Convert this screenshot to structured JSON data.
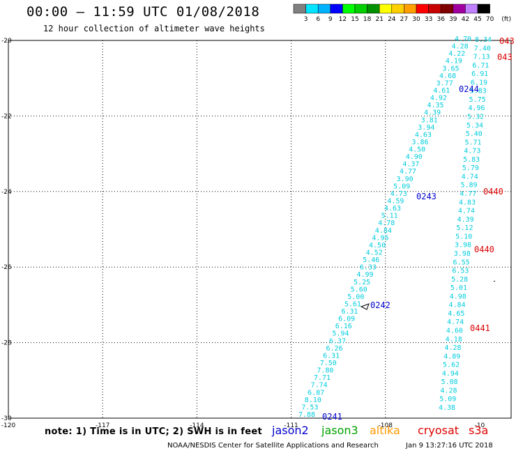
{
  "title": "00:00 – 11:59 UTC 01/08/2018",
  "subtitle": "12 hour collection of altimeter wave heights",
  "colorbar": {
    "labels": [
      "3",
      "6",
      "9",
      "12",
      "15",
      "18",
      "21",
      "24",
      "27",
      "30",
      "33",
      "36",
      "39",
      "42",
      "45",
      "70",
      "(ft)"
    ],
    "colors": [
      "#808080",
      "#00e5ff",
      "#00b2ff",
      "#0000ff",
      "#00ff00",
      "#00d000",
      "#009000",
      "#ffff00",
      "#ffd000",
      "#ffa000",
      "#ff0000",
      "#c80000",
      "#800000",
      "#a000a0",
      "#c080ff",
      "#000000"
    ]
  },
  "footer": {
    "note": "note:  1) Time is in UTC;  2) SWH is in feet",
    "satellites": [
      {
        "name": "jason2",
        "color": "#0000cc"
      },
      {
        "name": "jason3",
        "color": "#00a000"
      },
      {
        "name": "altika",
        "color": "#ff9900"
      },
      {
        "name": "cryosat",
        "color": "#dd0000"
      },
      {
        "name": "s3a",
        "color": "#dd0000"
      }
    ],
    "credit": "NOAA/NESDIS Center for Satellite Applications and Research",
    "timestamp": "Jan  9 13:27:16 UTC 2018"
  },
  "chart_data": {
    "type": "scatter",
    "xlim": [
      -120,
      -104
    ],
    "ylim": [
      -30,
      -20
    ],
    "x_ticks": [
      "-120",
      "-117",
      "-114",
      "-111",
      "-108",
      "-10"
    ],
    "y_ticks": [
      "-20",
      "-22",
      "-24",
      "-26",
      "-28",
      "-30"
    ],
    "grid": true,
    "value_color": "#00ccdd",
    "track_west": {
      "points": [
        {
          "lon": -109.1,
          "lat": -29.92,
          "v": "7.88"
        },
        {
          "lon": -109.0,
          "lat": -29.8,
          "v": "7.53"
        },
        {
          "lon": -108.95,
          "lat": -29.68,
          "v": "8.10"
        },
        {
          "lon": -108.9,
          "lat": -29.56,
          "v": "6.87"
        },
        {
          "lon": -108.85,
          "lat": -29.44,
          "v": "7.74"
        },
        {
          "lon": -108.78,
          "lat": -29.32,
          "v": "7.71"
        },
        {
          "lon": -108.72,
          "lat": -29.2,
          "v": "7.80"
        },
        {
          "lon": -108.66,
          "lat": -29.08,
          "v": "7.50"
        },
        {
          "lon": -108.6,
          "lat": -28.96,
          "v": "6.31"
        },
        {
          "lon": -108.54,
          "lat": -28.84,
          "v": "6.26"
        },
        {
          "lon": -108.48,
          "lat": -28.72,
          "v": "6.37"
        },
        {
          "lon": -108.42,
          "lat": -28.6,
          "v": "5.94"
        },
        {
          "lon": -108.36,
          "lat": -28.48,
          "v": "6.16"
        },
        {
          "lon": -108.3,
          "lat": -28.36,
          "v": "6.09"
        },
        {
          "lon": -108.24,
          "lat": -28.24,
          "v": "6.31"
        },
        {
          "lon": -108.18,
          "lat": -28.12,
          "v": "5.61"
        },
        {
          "lon": -108.12,
          "lat": -28.0,
          "v": "5.00"
        },
        {
          "lon": -108.06,
          "lat": -27.88,
          "v": "5.60"
        },
        {
          "lon": -108.0,
          "lat": -27.76,
          "v": "5.25"
        },
        {
          "lon": -107.94,
          "lat": -27.64,
          "v": "4.99"
        },
        {
          "lon": -107.88,
          "lat": -27.52,
          "v": "6.33"
        },
        {
          "lon": -107.82,
          "lat": -27.4,
          "v": "5.46"
        },
        {
          "lon": -107.76,
          "lat": -27.28,
          "v": "4.52"
        },
        {
          "lon": -107.7,
          "lat": -27.16,
          "v": "4.50"
        },
        {
          "lon": -107.64,
          "lat": -27.04,
          "v": "4.95"
        },
        {
          "lon": -107.58,
          "lat": -26.92,
          "v": "4.84"
        },
        {
          "lon": -107.52,
          "lat": -26.8,
          "v": "4.78"
        },
        {
          "lon": -107.46,
          "lat": -26.68,
          "v": "5.11"
        },
        {
          "lon": -107.4,
          "lat": -26.56,
          "v": "4.63"
        },
        {
          "lon": -107.34,
          "lat": -26.44,
          "v": "4.59"
        },
        {
          "lon": -107.28,
          "lat": -26.32,
          "v": "4.73"
        },
        {
          "lon": -107.22,
          "lat": -26.2,
          "v": "5.09"
        },
        {
          "lon": -107.16,
          "lat": -26.08,
          "v": "3.90"
        },
        {
          "lon": -107.1,
          "lat": -25.96,
          "v": "4.77"
        },
        {
          "lon": -107.04,
          "lat": -25.84,
          "v": "4.37"
        },
        {
          "lon": -106.98,
          "lat": -25.72,
          "v": "4.90"
        },
        {
          "lon": -106.92,
          "lat": -25.6,
          "v": "4.50"
        },
        {
          "lon": -106.86,
          "lat": -25.48,
          "v": "3.86"
        },
        {
          "lon": -106.8,
          "lat": -25.36,
          "v": "4.63"
        },
        {
          "lon": -106.74,
          "lat": -25.24,
          "v": "3.94"
        },
        {
          "lon": -106.68,
          "lat": -25.12,
          "v": "3.81"
        },
        {
          "lon": -106.62,
          "lat": -25.0,
          "v": "4.39"
        },
        {
          "lon": -106.56,
          "lat": -24.88,
          "v": "4.35"
        },
        {
          "lon": -106.5,
          "lat": -24.76,
          "v": "4.92"
        },
        {
          "lon": -106.44,
          "lat": -24.64,
          "v": "4.61"
        },
        {
          "lon": -106.38,
          "lat": -24.52,
          "v": "3.77"
        },
        {
          "lon": -106.32,
          "lat": -24.4,
          "v": "4.68"
        },
        {
          "lon": -106.26,
          "lat": -24.28,
          "v": "3.65"
        },
        {
          "lon": -106.2,
          "lat": -24.16,
          "v": "4.19"
        },
        {
          "lon": -106.14,
          "lat": -24.04,
          "v": "4.22"
        },
        {
          "lon": -106.08,
          "lat": -23.92,
          "v": "4.28"
        },
        {
          "lon": -106.02,
          "lat": -23.8,
          "v": "4.70"
        }
      ]
    },
    "track_east": {
      "points": [
        {
          "v": "4.38"
        },
        {
          "v": "5.09"
        },
        {
          "v": "4.28"
        },
        {
          "v": "5.08"
        },
        {
          "v": "4.94"
        },
        {
          "v": "5.62"
        },
        {
          "v": "4.89"
        },
        {
          "v": "4.28"
        },
        {
          "v": "4.18"
        },
        {
          "v": "4.60"
        },
        {
          "v": "4.74"
        },
        {
          "v": "4.65"
        },
        {
          "v": "4.84"
        },
        {
          "v": "4.98"
        },
        {
          "v": "5.01"
        },
        {
          "v": "5.28"
        },
        {
          "v": "6.53"
        },
        {
          "v": "6.55"
        },
        {
          "v": "3.98"
        },
        {
          "v": "3.98"
        },
        {
          "v": "5.10"
        },
        {
          "v": "5.12"
        },
        {
          "v": "4.39"
        },
        {
          "v": "4.74"
        },
        {
          "v": "4.83"
        },
        {
          "v": "4.77"
        },
        {
          "v": "5.89"
        },
        {
          "v": "4.74"
        },
        {
          "v": "5.79"
        },
        {
          "v": "5.83"
        },
        {
          "v": "4.73"
        },
        {
          "v": "5.71"
        },
        {
          "v": "5.40"
        },
        {
          "v": "5.34"
        },
        {
          "v": "5.32"
        },
        {
          "v": "4.96"
        },
        {
          "v": "5.75"
        },
        {
          "v": "5.83"
        },
        {
          "v": "6.19"
        },
        {
          "v": "6.91"
        },
        {
          "v": "6.71"
        },
        {
          "v": "7.13"
        },
        {
          "v": "7.40"
        },
        {
          "v": "8.34"
        }
      ]
    },
    "track_labels": [
      {
        "text": "0241",
        "color": "#0000cc"
      },
      {
        "text": "0242",
        "color": "#0000cc"
      },
      {
        "text": "0243",
        "color": "#0000cc"
      },
      {
        "text": "0244",
        "color": "#0000cc"
      },
      {
        "text": "0440",
        "color": "#dd0000"
      },
      {
        "text": "0440",
        "color": "#dd0000"
      },
      {
        "text": "0441",
        "color": "#dd0000"
      },
      {
        "text": "043",
        "color": "#dd0000"
      },
      {
        "text": "043",
        "color": "#dd0000"
      }
    ]
  }
}
